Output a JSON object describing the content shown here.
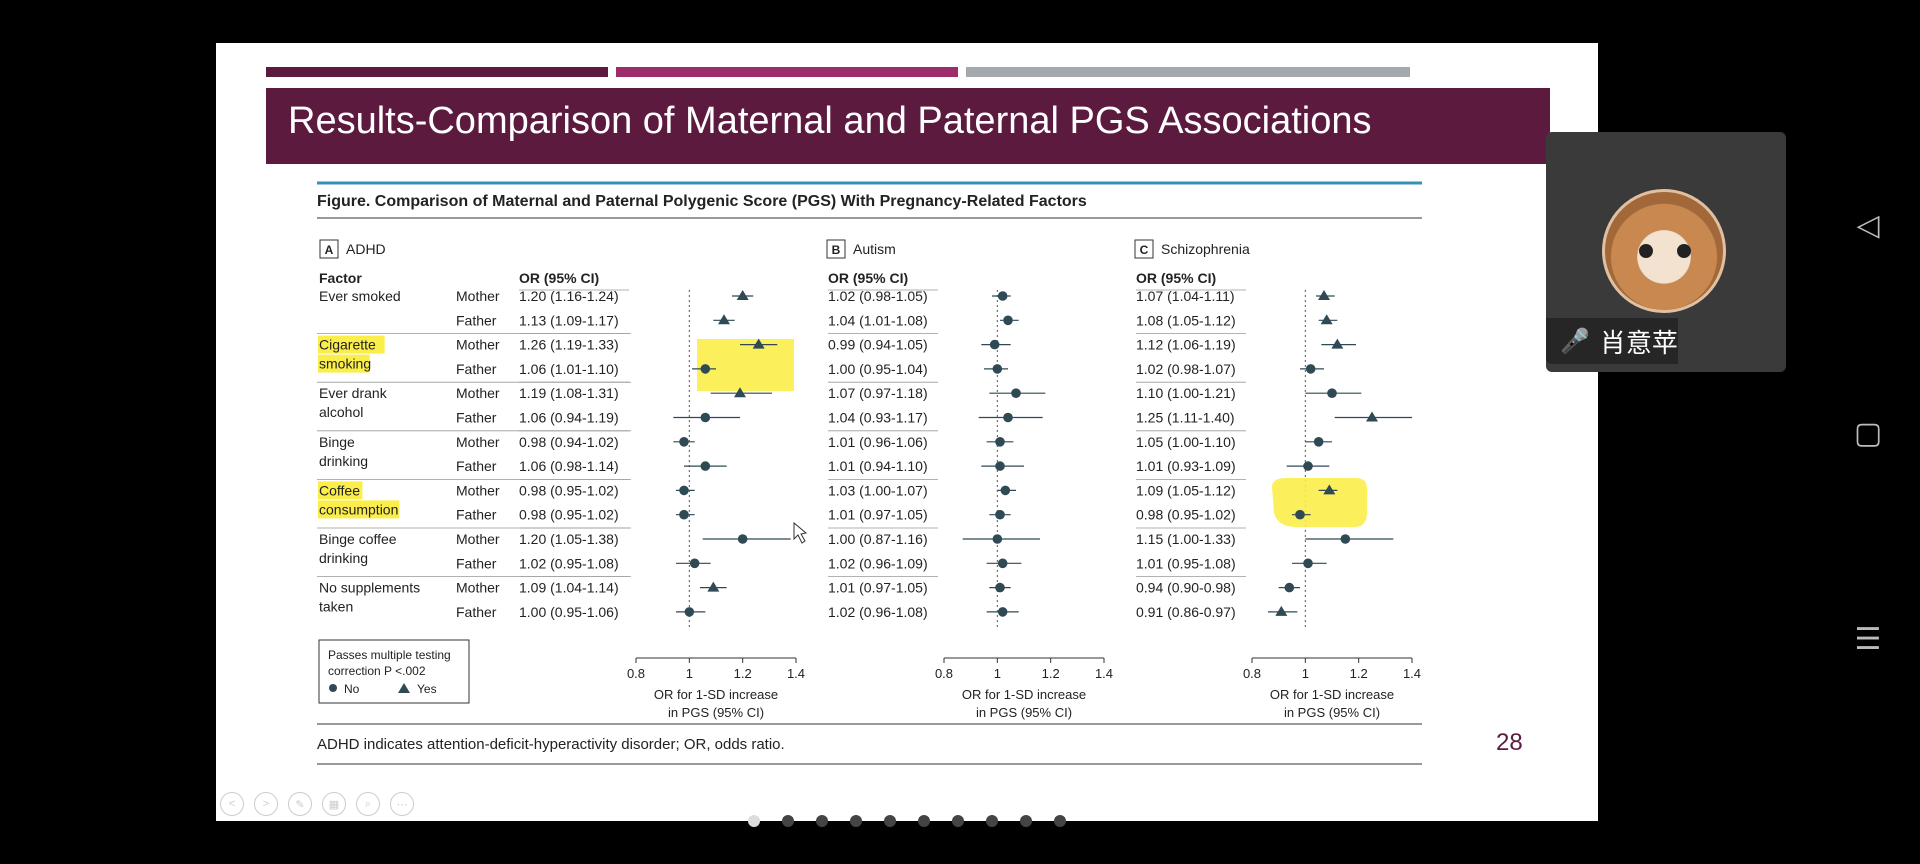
{
  "slide": {
    "title": "Results-Comparison of Maternal and Paternal PGS Associations",
    "page_number": "28",
    "top_bar_colors": [
      "#5c1a3e",
      "#9c2d6a",
      "#a4a9ad"
    ]
  },
  "figure": {
    "caption": "Figure. Comparison of Maternal and Paternal Polygenic Score (PGS) With Pregnancy-Related Factors",
    "factor_header": "Factor",
    "or_header": "OR (95% CI)",
    "xaxis_label_line1": "OR for 1-SD increase",
    "xaxis_label_line2": "in PGS (95% CI)",
    "xticks": [
      "0.8",
      "1",
      "1.2",
      "1.4"
    ],
    "footnote": "ADHD indicates attention-deficit-hyperactivity disorder; OR, odds ratio.",
    "legend": {
      "title_line1": "Passes multiple testing",
      "title_line2": "correction P <.002",
      "no_label": "No",
      "yes_label": "Yes"
    },
    "factors": [
      {
        "name": [
          "Ever smoked"
        ],
        "highlight": false
      },
      {
        "name": [
          "Cigarette",
          "smoking"
        ],
        "highlight": true
      },
      {
        "name": [
          "Ever drank",
          "alcohol"
        ],
        "highlight": false
      },
      {
        "name": [
          "Binge",
          "drinking"
        ],
        "highlight": false
      },
      {
        "name": [
          "Coffee",
          "consumption"
        ],
        "highlight": true
      },
      {
        "name": [
          "Binge coffee",
          "drinking"
        ],
        "highlight": false
      },
      {
        "name": [
          "No supplements",
          "taken"
        ],
        "highlight": false
      }
    ],
    "parents": [
      "Mother",
      "Father"
    ]
  },
  "chart_data": [
    {
      "type": "forest",
      "panel_letter": "A",
      "title": "ADHD",
      "xlim": [
        0.8,
        1.4
      ],
      "ref_line": 1.0,
      "rows": [
        {
          "or": 1.2,
          "lo": 1.16,
          "hi": 1.24,
          "sig": true,
          "text": "1.20 (1.16-1.24)"
        },
        {
          "or": 1.13,
          "lo": 1.09,
          "hi": 1.17,
          "sig": true,
          "text": "1.13 (1.09-1.17)"
        },
        {
          "or": 1.26,
          "lo": 1.19,
          "hi": 1.33,
          "sig": true,
          "text": "1.26 (1.19-1.33)"
        },
        {
          "or": 1.06,
          "lo": 1.01,
          "hi": 1.1,
          "sig": false,
          "text": "1.06 (1.01-1.10)"
        },
        {
          "or": 1.19,
          "lo": 1.08,
          "hi": 1.31,
          "sig": true,
          "text": "1.19 (1.08-1.31)"
        },
        {
          "or": 1.06,
          "lo": 0.94,
          "hi": 1.19,
          "sig": false,
          "text": "1.06 (0.94-1.19)"
        },
        {
          "or": 0.98,
          "lo": 0.94,
          "hi": 1.02,
          "sig": false,
          "text": "0.98 (0.94-1.02)"
        },
        {
          "or": 1.06,
          "lo": 0.98,
          "hi": 1.14,
          "sig": false,
          "text": "1.06 (0.98-1.14)"
        },
        {
          "or": 0.98,
          "lo": 0.95,
          "hi": 1.02,
          "sig": false,
          "text": "0.98 (0.95-1.02)"
        },
        {
          "or": 0.98,
          "lo": 0.95,
          "hi": 1.02,
          "sig": false,
          "text": "0.98 (0.95-1.02)"
        },
        {
          "or": 1.2,
          "lo": 1.05,
          "hi": 1.38,
          "sig": false,
          "text": "1.20 (1.05-1.38)"
        },
        {
          "or": 1.02,
          "lo": 0.95,
          "hi": 1.08,
          "sig": false,
          "text": "1.02 (0.95-1.08)"
        },
        {
          "or": 1.09,
          "lo": 1.04,
          "hi": 1.14,
          "sig": true,
          "text": "1.09 (1.04-1.14)"
        },
        {
          "or": 1.0,
          "lo": 0.95,
          "hi": 1.06,
          "sig": false,
          "text": "1.00 (0.95-1.06)"
        }
      ]
    },
    {
      "type": "forest",
      "panel_letter": "B",
      "title": "Autism",
      "xlim": [
        0.8,
        1.4
      ],
      "ref_line": 1.0,
      "rows": [
        {
          "or": 1.02,
          "lo": 0.98,
          "hi": 1.05,
          "sig": false,
          "text": "1.02 (0.98-1.05)"
        },
        {
          "or": 1.04,
          "lo": 1.01,
          "hi": 1.08,
          "sig": false,
          "text": "1.04 (1.01-1.08)"
        },
        {
          "or": 0.99,
          "lo": 0.94,
          "hi": 1.05,
          "sig": false,
          "text": "0.99 (0.94-1.05)"
        },
        {
          "or": 1.0,
          "lo": 0.95,
          "hi": 1.04,
          "sig": false,
          "text": "1.00 (0.95-1.04)"
        },
        {
          "or": 1.07,
          "lo": 0.97,
          "hi": 1.18,
          "sig": false,
          "text": "1.07 (0.97-1.18)"
        },
        {
          "or": 1.04,
          "lo": 0.93,
          "hi": 1.17,
          "sig": false,
          "text": "1.04 (0.93-1.17)"
        },
        {
          "or": 1.01,
          "lo": 0.96,
          "hi": 1.06,
          "sig": false,
          "text": "1.01 (0.96-1.06)"
        },
        {
          "or": 1.01,
          "lo": 0.94,
          "hi": 1.1,
          "sig": false,
          "text": "1.01 (0.94-1.10)"
        },
        {
          "or": 1.03,
          "lo": 1.0,
          "hi": 1.07,
          "sig": false,
          "text": "1.03 (1.00-1.07)"
        },
        {
          "or": 1.01,
          "lo": 0.97,
          "hi": 1.05,
          "sig": false,
          "text": "1.01 (0.97-1.05)"
        },
        {
          "or": 1.0,
          "lo": 0.87,
          "hi": 1.16,
          "sig": false,
          "text": "1.00 (0.87-1.16)"
        },
        {
          "or": 1.02,
          "lo": 0.96,
          "hi": 1.09,
          "sig": false,
          "text": "1.02 (0.96-1.09)"
        },
        {
          "or": 1.01,
          "lo": 0.97,
          "hi": 1.05,
          "sig": false,
          "text": "1.01 (0.97-1.05)"
        },
        {
          "or": 1.02,
          "lo": 0.96,
          "hi": 1.08,
          "sig": false,
          "text": "1.02 (0.96-1.08)"
        }
      ]
    },
    {
      "type": "forest",
      "panel_letter": "C",
      "title": "Schizophrenia",
      "xlim": [
        0.8,
        1.4
      ],
      "ref_line": 1.0,
      "rows": [
        {
          "or": 1.07,
          "lo": 1.04,
          "hi": 1.11,
          "sig": true,
          "text": "1.07 (1.04-1.11)"
        },
        {
          "or": 1.08,
          "lo": 1.05,
          "hi": 1.12,
          "sig": true,
          "text": "1.08 (1.05-1.12)"
        },
        {
          "or": 1.12,
          "lo": 1.06,
          "hi": 1.19,
          "sig": true,
          "text": "1.12 (1.06-1.19)"
        },
        {
          "or": 1.02,
          "lo": 0.98,
          "hi": 1.07,
          "sig": false,
          "text": "1.02 (0.98-1.07)"
        },
        {
          "or": 1.1,
          "lo": 1.0,
          "hi": 1.21,
          "sig": false,
          "text": "1.10 (1.00-1.21)"
        },
        {
          "or": 1.25,
          "lo": 1.11,
          "hi": 1.4,
          "sig": true,
          "text": "1.25 (1.11-1.40)"
        },
        {
          "or": 1.05,
          "lo": 1.0,
          "hi": 1.1,
          "sig": false,
          "text": "1.05 (1.00-1.10)"
        },
        {
          "or": 1.01,
          "lo": 0.93,
          "hi": 1.09,
          "sig": false,
          "text": "1.01 (0.93-1.09)"
        },
        {
          "or": 1.09,
          "lo": 1.05,
          "hi": 1.12,
          "sig": true,
          "text": "1.09 (1.05-1.12)"
        },
        {
          "or": 0.98,
          "lo": 0.95,
          "hi": 1.02,
          "sig": false,
          "text": "0.98 (0.95-1.02)"
        },
        {
          "or": 1.15,
          "lo": 1.0,
          "hi": 1.33,
          "sig": false,
          "text": "1.15 (1.00-1.33)"
        },
        {
          "or": 1.01,
          "lo": 0.95,
          "hi": 1.08,
          "sig": false,
          "text": "1.01 (0.95-1.08)"
        },
        {
          "or": 0.94,
          "lo": 0.9,
          "hi": 0.98,
          "sig": false,
          "text": "0.94 (0.90-0.98)"
        },
        {
          "or": 0.91,
          "lo": 0.86,
          "hi": 0.97,
          "sig": true,
          "text": "0.91 (0.86-0.97)"
        }
      ]
    }
  ],
  "meeting": {
    "participant_name": "肖意苹",
    "mic_icon": "microphone-icon"
  },
  "colors": {
    "marker": "#2f4a55",
    "highlight": "#fbee4a",
    "title_band": "#5c1a3e",
    "rule_blue": "#3a8fb7"
  }
}
